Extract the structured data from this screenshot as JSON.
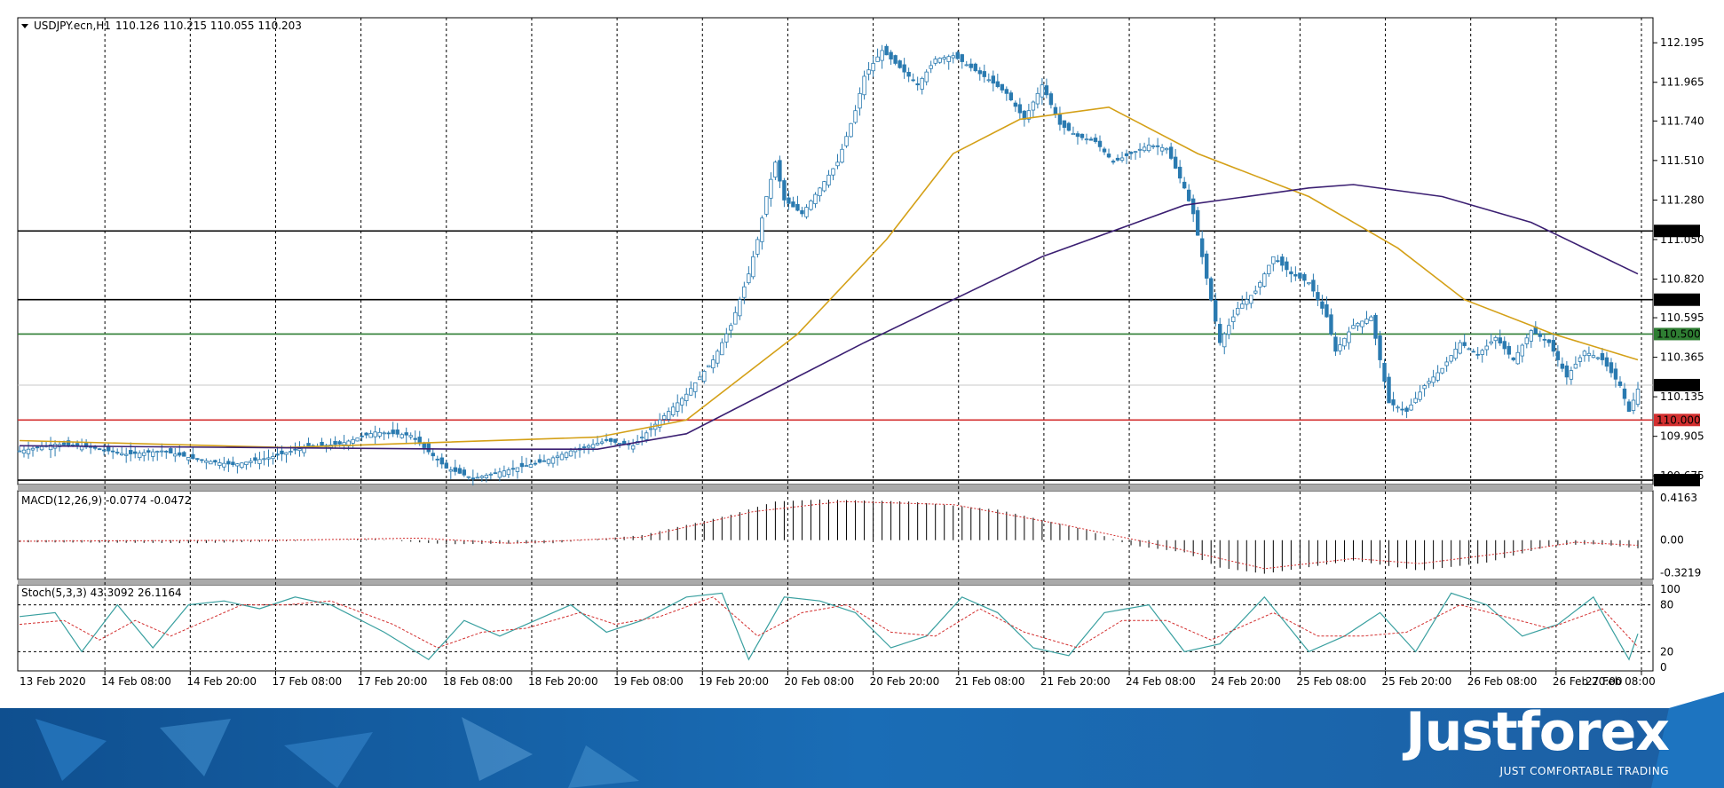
{
  "header": {
    "symbol": "USDJPY.ecn,H1",
    "ohlc": "110.126 110.215 110.055 110.203",
    "macd": "MACD(12,26,9) -0.0774 -0.0472",
    "stoch": "Stoch(5,3,3) 43.3092 26.1164"
  },
  "colors": {
    "candle": "#2a7ab0",
    "ma_fast": "#d4a017",
    "ma_slow": "#3b1f72",
    "level_black": "#000000",
    "level_green": "#2e7d32",
    "level_red": "#d32f2f",
    "stoch_main": "#3aa0a0",
    "stoch_signal": "#d32f2f",
    "footer_blue": "#1a63a8"
  },
  "brand": {
    "name": "Justforex",
    "tagline": "JUST COMFORTABLE TRADING"
  },
  "chart_data": {
    "type": "candlestick",
    "symbol": "USDJPY.ecn",
    "timeframe": "H1",
    "price_axis": {
      "ticks": [
        "112.195",
        "111.965",
        "111.740",
        "111.510",
        "111.280",
        "111.050",
        "110.820",
        "110.595",
        "110.365",
        "110.135",
        "109.905",
        "109.675"
      ],
      "range": [
        109.64,
        112.32
      ]
    },
    "time_axis": [
      "13 Feb 2020",
      "14 Feb 08:00",
      "14 Feb 20:00",
      "17 Feb 08:00",
      "17 Feb 20:00",
      "18 Feb 08:00",
      "18 Feb 20:00",
      "19 Feb 08:00",
      "19 Feb 20:00",
      "20 Feb 08:00",
      "20 Feb 20:00",
      "21 Feb 08:00",
      "21 Feb 20:00",
      "24 Feb 08:00",
      "24 Feb 20:00",
      "25 Feb 08:00",
      "25 Feb 20:00",
      "26 Feb 08:00",
      "26 Feb 20:00",
      "27 Feb 08:00"
    ],
    "levels": [
      {
        "price": 111.1,
        "label": "111.100",
        "color": "#000000"
      },
      {
        "price": 110.7,
        "label": "110.700",
        "color": "#000000"
      },
      {
        "price": 110.5,
        "label": "110.500",
        "color": "#2e7d32"
      },
      {
        "price": 110.0,
        "label": "110.000",
        "color": "#d32f2f"
      },
      {
        "price": 109.65,
        "label": "109.650",
        "color": "#000000"
      }
    ],
    "current_price": {
      "price": 110.203,
      "label": "110.203"
    },
    "close_path": [
      [
        0,
        109.82
      ],
      [
        8,
        109.86
      ],
      [
        16,
        109.84
      ],
      [
        24,
        109.8
      ],
      [
        32,
        109.82
      ],
      [
        40,
        109.77
      ],
      [
        48,
        109.74
      ],
      [
        56,
        109.78
      ],
      [
        64,
        109.84
      ],
      [
        72,
        109.86
      ],
      [
        80,
        109.93
      ],
      [
        88,
        109.91
      ],
      [
        96,
        109.72
      ],
      [
        102,
        109.66
      ],
      [
        110,
        109.71
      ],
      [
        118,
        109.76
      ],
      [
        124,
        109.82
      ],
      [
        132,
        109.88
      ],
      [
        138,
        109.85
      ],
      [
        146,
        110.05
      ],
      [
        150,
        110.15
      ],
      [
        156,
        110.35
      ],
      [
        160,
        110.55
      ],
      [
        164,
        110.85
      ],
      [
        166,
        111.05
      ],
      [
        168,
        111.3
      ],
      [
        170,
        111.5
      ],
      [
        172,
        111.28
      ],
      [
        176,
        111.2
      ],
      [
        180,
        111.35
      ],
      [
        184,
        111.5
      ],
      [
        188,
        111.8
      ],
      [
        190,
        112.0
      ],
      [
        194,
        112.15
      ],
      [
        198,
        112.05
      ],
      [
        202,
        111.95
      ],
      [
        206,
        112.1
      ],
      [
        210,
        112.12
      ],
      [
        214,
        112.05
      ],
      [
        218,
        111.98
      ],
      [
        222,
        111.9
      ],
      [
        226,
        111.75
      ],
      [
        230,
        111.95
      ],
      [
        234,
        111.72
      ],
      [
        238,
        111.65
      ],
      [
        242,
        111.62
      ],
      [
        246,
        111.5
      ],
      [
        250,
        111.55
      ],
      [
        254,
        111.6
      ],
      [
        258,
        111.58
      ],
      [
        262,
        111.35
      ],
      [
        264,
        111.2
      ],
      [
        268,
        110.7
      ],
      [
        270,
        110.45
      ],
      [
        274,
        110.65
      ],
      [
        278,
        110.75
      ],
      [
        282,
        110.95
      ],
      [
        286,
        110.85
      ],
      [
        290,
        110.8
      ],
      [
        294,
        110.6
      ],
      [
        296,
        110.4
      ],
      [
        300,
        110.55
      ],
      [
        304,
        110.6
      ],
      [
        308,
        110.1
      ],
      [
        312,
        110.05
      ],
      [
        316,
        110.2
      ],
      [
        320,
        110.3
      ],
      [
        324,
        110.45
      ],
      [
        328,
        110.38
      ],
      [
        332,
        110.48
      ],
      [
        336,
        110.35
      ],
      [
        340,
        110.52
      ],
      [
        344,
        110.45
      ],
      [
        348,
        110.25
      ],
      [
        352,
        110.4
      ],
      [
        356,
        110.35
      ],
      [
        360,
        110.2
      ],
      [
        362,
        110.05
      ],
      [
        364,
        110.18
      ]
    ],
    "ma_fast": [
      [
        0,
        109.88
      ],
      [
        60,
        109.84
      ],
      [
        130,
        109.9
      ],
      [
        150,
        110.0
      ],
      [
        175,
        110.5
      ],
      [
        195,
        111.05
      ],
      [
        210,
        111.55
      ],
      [
        225,
        111.75
      ],
      [
        245,
        111.82
      ],
      [
        265,
        111.55
      ],
      [
        290,
        111.3
      ],
      [
        310,
        111.0
      ],
      [
        325,
        110.7
      ],
      [
        345,
        110.5
      ],
      [
        364,
        110.35
      ]
    ],
    "ma_slow": [
      [
        0,
        109.85
      ],
      [
        100,
        109.83
      ],
      [
        130,
        109.83
      ],
      [
        150,
        109.92
      ],
      [
        190,
        110.45
      ],
      [
        230,
        110.95
      ],
      [
        262,
        111.25
      ],
      [
        290,
        111.35
      ],
      [
        300,
        111.37
      ],
      [
        320,
        111.3
      ],
      [
        340,
        111.15
      ],
      [
        364,
        110.85
      ]
    ],
    "macd": {
      "label": "MACD(12,26,9)",
      "values": [
        -0.0774,
        -0.0472
      ],
      "axis_ticks": [
        "0.4163",
        "0.00",
        "-0.3219"
      ],
      "range": [
        -0.36,
        0.46
      ],
      "hist": [
        [
          0,
          -0.02
        ],
        [
          40,
          -0.03
        ],
        [
          80,
          0.01
        ],
        [
          96,
          -0.04
        ],
        [
          120,
          -0.03
        ],
        [
          140,
          0.05
        ],
        [
          160,
          0.25
        ],
        [
          170,
          0.38
        ],
        [
          180,
          0.4
        ],
        [
          200,
          0.38
        ],
        [
          220,
          0.3
        ],
        [
          240,
          0.1
        ],
        [
          250,
          -0.05
        ],
        [
          262,
          -0.12
        ],
        [
          270,
          -0.27
        ],
        [
          280,
          -0.33
        ],
        [
          300,
          -0.2
        ],
        [
          315,
          -0.3
        ],
        [
          330,
          -0.22
        ],
        [
          345,
          -0.05
        ],
        [
          355,
          -0.04
        ],
        [
          364,
          -0.08
        ]
      ],
      "signal": [
        [
          0,
          -0.01
        ],
        [
          60,
          0.0
        ],
        [
          90,
          0.02
        ],
        [
          110,
          -0.03
        ],
        [
          140,
          0.03
        ],
        [
          165,
          0.28
        ],
        [
          185,
          0.38
        ],
        [
          210,
          0.35
        ],
        [
          235,
          0.15
        ],
        [
          260,
          -0.08
        ],
        [
          280,
          -0.28
        ],
        [
          300,
          -0.18
        ],
        [
          315,
          -0.23
        ],
        [
          335,
          -0.12
        ],
        [
          350,
          -0.02
        ],
        [
          364,
          -0.05
        ]
      ]
    },
    "stoch": {
      "label": "Stoch(5,3,3)",
      "values": [
        43.3092,
        26.1164
      ],
      "axis_ticks": [
        "100",
        "80",
        "20",
        "0"
      ],
      "levels": [
        80,
        20
      ],
      "main": [
        [
          0,
          65
        ],
        [
          8,
          70
        ],
        [
          14,
          20
        ],
        [
          22,
          80
        ],
        [
          30,
          25
        ],
        [
          38,
          80
        ],
        [
          46,
          85
        ],
        [
          54,
          75
        ],
        [
          62,
          90
        ],
        [
          70,
          80
        ],
        [
          82,
          45
        ],
        [
          92,
          10
        ],
        [
          100,
          60
        ],
        [
          108,
          40
        ],
        [
          116,
          60
        ],
        [
          124,
          80
        ],
        [
          132,
          45
        ],
        [
          140,
          60
        ],
        [
          150,
          90
        ],
        [
          158,
          95
        ],
        [
          164,
          10
        ],
        [
          172,
          90
        ],
        [
          180,
          85
        ],
        [
          188,
          70
        ],
        [
          196,
          25
        ],
        [
          204,
          40
        ],
        [
          212,
          90
        ],
        [
          220,
          70
        ],
        [
          228,
          25
        ],
        [
          236,
          15
        ],
        [
          244,
          70
        ],
        [
          254,
          80
        ],
        [
          262,
          20
        ],
        [
          270,
          30
        ],
        [
          280,
          90
        ],
        [
          290,
          20
        ],
        [
          298,
          40
        ],
        [
          306,
          70
        ],
        [
          314,
          20
        ],
        [
          322,
          95
        ],
        [
          330,
          80
        ],
        [
          338,
          40
        ],
        [
          346,
          55
        ],
        [
          354,
          90
        ],
        [
          362,
          10
        ],
        [
          364,
          43
        ]
      ],
      "signal": [
        [
          0,
          55
        ],
        [
          10,
          60
        ],
        [
          18,
          35
        ],
        [
          26,
          60
        ],
        [
          34,
          40
        ],
        [
          42,
          60
        ],
        [
          50,
          80
        ],
        [
          60,
          80
        ],
        [
          70,
          85
        ],
        [
          84,
          55
        ],
        [
          94,
          25
        ],
        [
          104,
          45
        ],
        [
          114,
          50
        ],
        [
          126,
          70
        ],
        [
          134,
          55
        ],
        [
          144,
          65
        ],
        [
          156,
          90
        ],
        [
          166,
          40
        ],
        [
          176,
          70
        ],
        [
          186,
          80
        ],
        [
          196,
          45
        ],
        [
          206,
          40
        ],
        [
          216,
          75
        ],
        [
          226,
          45
        ],
        [
          238,
          25
        ],
        [
          248,
          60
        ],
        [
          258,
          60
        ],
        [
          268,
          35
        ],
        [
          282,
          70
        ],
        [
          292,
          40
        ],
        [
          302,
          40
        ],
        [
          312,
          45
        ],
        [
          324,
          80
        ],
        [
          334,
          65
        ],
        [
          344,
          50
        ],
        [
          356,
          75
        ],
        [
          364,
          26
        ]
      ]
    }
  }
}
